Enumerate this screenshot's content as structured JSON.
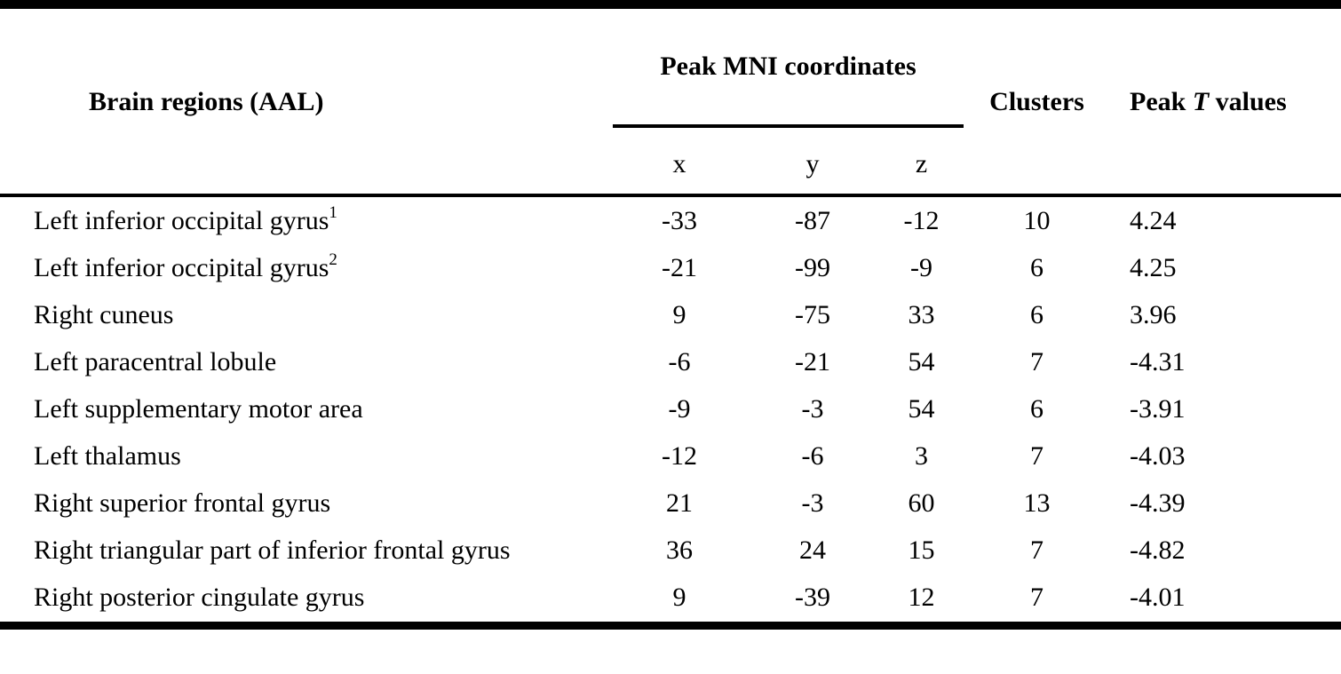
{
  "table": {
    "colors": {
      "text": "#000000",
      "background": "#ffffff",
      "rule": "#000000"
    },
    "headers": {
      "brain_regions": "Brain regions (AAL)",
      "mni_group": "Peak MNI coordinates",
      "coord_cols": {
        "x": "x",
        "y": "y",
        "z": "z"
      },
      "clusters": "Clusters",
      "peak_t": {
        "prefix": "Peak ",
        "italic": "T",
        "suffix": " values"
      }
    },
    "rows": [
      {
        "region": "Left inferior occipital gyrus",
        "sup": "1",
        "x": "-33",
        "y": "-87",
        "z": "-12",
        "clusters": "10",
        "t": "4.24"
      },
      {
        "region": "Left inferior occipital gyrus",
        "sup": "2",
        "x": "-21",
        "y": "-99",
        "z": "-9",
        "clusters": "6",
        "t": "4.25"
      },
      {
        "region": "Right cuneus",
        "sup": "",
        "x": "9",
        "y": "-75",
        "z": "33",
        "clusters": "6",
        "t": "3.96"
      },
      {
        "region": "Left paracentral lobule",
        "sup": "",
        "x": "-6",
        "y": "-21",
        "z": "54",
        "clusters": "7",
        "t": "-4.31"
      },
      {
        "region": "Left supplementary motor area",
        "sup": "",
        "x": "-9",
        "y": "-3",
        "z": "54",
        "clusters": "6",
        "t": "-3.91"
      },
      {
        "region": "Left thalamus",
        "sup": "",
        "x": "-12",
        "y": "-6",
        "z": "3",
        "clusters": "7",
        "t": "-4.03"
      },
      {
        "region": "Right superior frontal gyrus",
        "sup": "",
        "x": "21",
        "y": "-3",
        "z": "60",
        "clusters": "13",
        "t": "-4.39"
      },
      {
        "region": "Right triangular part of inferior frontal gyrus",
        "sup": "",
        "x": "36",
        "y": "24",
        "z": "15",
        "clusters": "7",
        "t": "-4.82"
      },
      {
        "region": "Right posterior cingulate gyrus",
        "sup": "",
        "x": "9",
        "y": "-39",
        "z": "12",
        "clusters": "7",
        "t": "-4.01"
      }
    ]
  }
}
